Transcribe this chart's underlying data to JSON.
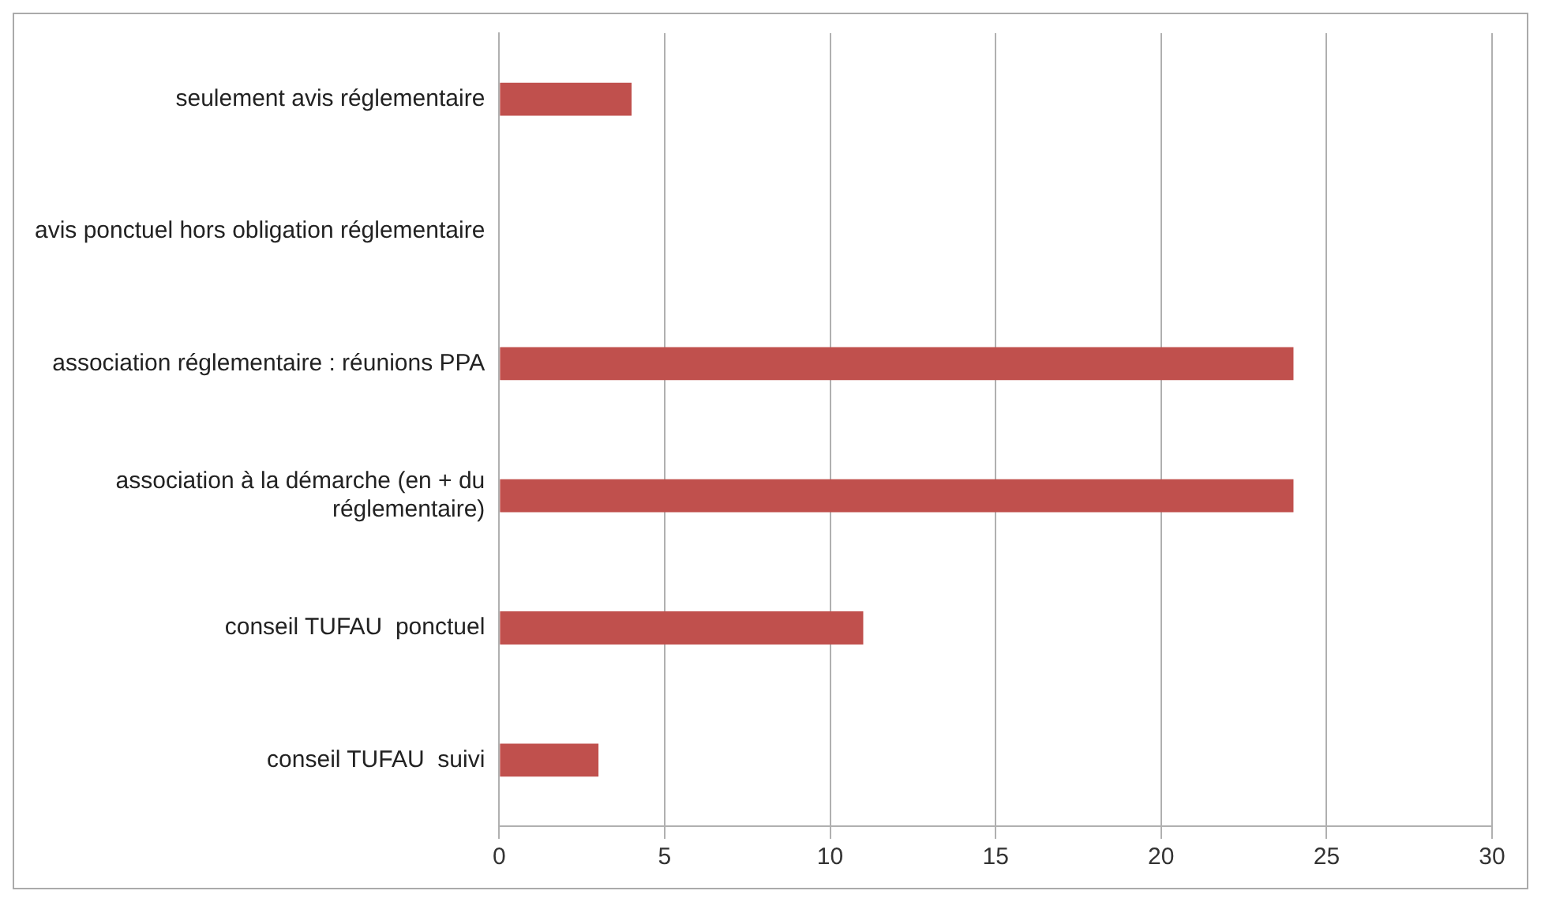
{
  "chart_data": {
    "type": "bar",
    "orientation": "horizontal",
    "categories": [
      "seulement avis réglementaire",
      "avis ponctuel hors obligation réglementaire",
      "association réglementaire : réunions PPA",
      "association à la démarche (en + du réglementaire)",
      "conseil TUFAU  ponctuel",
      "conseil TUFAU  suivi"
    ],
    "values": [
      4,
      0,
      24,
      24,
      11,
      3
    ],
    "color": "#c0504d",
    "xlim": [
      0,
      30
    ],
    "xticks": [
      0,
      5,
      10,
      15,
      20,
      25,
      30
    ],
    "grid": "x",
    "legend": false
  }
}
